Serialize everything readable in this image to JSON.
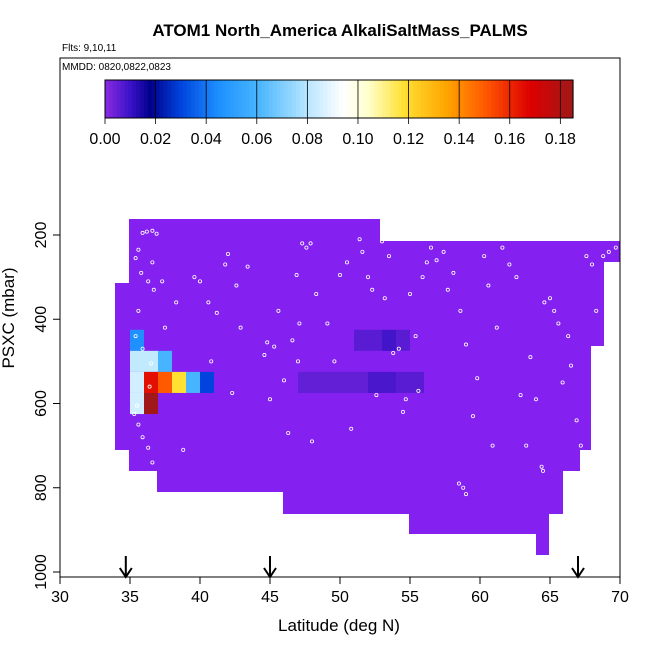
{
  "chart_data": {
    "type": "heatmap",
    "title": "ATOM1 North_America AlkaliSaltMass_PALMS",
    "subtitle": "Flts: 9,10,11",
    "annotation": "MMDD: 0820,0822,0823",
    "xlabel": "Latitude (deg N)",
    "ylabel": "PSXC (mbar)",
    "xlim": [
      30,
      70
    ],
    "ylim": [
      1000,
      0
    ],
    "y_reversed": true,
    "x_ticks": [
      "30",
      "35",
      "40",
      "45",
      "50",
      "55",
      "60",
      "65",
      "70"
    ],
    "y_ticks": [
      "200",
      "400",
      "600",
      "800",
      "1000"
    ],
    "colorbar": {
      "range": [
        0.0,
        0.185
      ],
      "ticks": [
        "0.00",
        "0.02",
        "0.04",
        "0.06",
        "0.08",
        "0.10",
        "0.12",
        "0.14",
        "0.16",
        "0.18"
      ],
      "stops": [
        {
          "v": 0.0,
          "c": "#8a2be2"
        },
        {
          "v": 0.01,
          "c": "#3a12c8"
        },
        {
          "v": 0.018,
          "c": "#00008b"
        },
        {
          "v": 0.03,
          "c": "#0044dd"
        },
        {
          "v": 0.045,
          "c": "#1e90ff"
        },
        {
          "v": 0.06,
          "c": "#46b4ff"
        },
        {
          "v": 0.08,
          "c": "#b8e6ff"
        },
        {
          "v": 0.094,
          "c": "#ffffff"
        },
        {
          "v": 0.104,
          "c": "#ffffcc"
        },
        {
          "v": 0.118,
          "c": "#ffe033"
        },
        {
          "v": 0.135,
          "c": "#ffa500"
        },
        {
          "v": 0.15,
          "c": "#ff5a00"
        },
        {
          "v": 0.168,
          "c": "#dd0000"
        },
        {
          "v": 0.185,
          "c": "#a01818"
        }
      ]
    },
    "background_color": "#8420f0",
    "cells": [
      {
        "lat": [
          35,
          36
        ],
        "p": [
          425,
          475
        ],
        "v": 0.045
      },
      {
        "lat": [
          35,
          37
        ],
        "p": [
          475,
          525
        ],
        "v": 0.082
      },
      {
        "lat": [
          37,
          38
        ],
        "p": [
          475,
          525
        ],
        "v": 0.06
      },
      {
        "lat": [
          35,
          36
        ],
        "p": [
          525,
          575
        ],
        "v": 0.085
      },
      {
        "lat": [
          36,
          37
        ],
        "p": [
          525,
          575
        ],
        "v": 0.165
      },
      {
        "lat": [
          37,
          38
        ],
        "p": [
          525,
          575
        ],
        "v": 0.15
      },
      {
        "lat": [
          38,
          39
        ],
        "p": [
          525,
          575
        ],
        "v": 0.118
      },
      {
        "lat": [
          39,
          40
        ],
        "p": [
          525,
          575
        ],
        "v": 0.06
      },
      {
        "lat": [
          40,
          41
        ],
        "p": [
          525,
          575
        ],
        "v": 0.03
      },
      {
        "lat": [
          35,
          36
        ],
        "p": [
          575,
          625
        ],
        "v": 0.085
      },
      {
        "lat": [
          36,
          37
        ],
        "p": [
          575,
          625
        ],
        "v": 0.185
      },
      {
        "lat": [
          51,
          53
        ],
        "p": [
          425,
          475
        ],
        "v": 0.006
      },
      {
        "lat": [
          53,
          54
        ],
        "p": [
          425,
          475
        ],
        "v": 0.009
      },
      {
        "lat": [
          54,
          55
        ],
        "p": [
          425,
          475
        ],
        "v": 0.006
      },
      {
        "lat": [
          47,
          52
        ],
        "p": [
          525,
          575
        ],
        "v": 0.005
      },
      {
        "lat": [
          52,
          54
        ],
        "p": [
          525,
          575
        ],
        "v": 0.008
      },
      {
        "lat": [
          54,
          56
        ],
        "p": [
          525,
          575
        ],
        "v": 0.006
      }
    ],
    "flight_markers_lat": [
      34.7,
      45.0,
      67.0
    ],
    "aircraft_points": [
      [
        35.4,
        255
      ],
      [
        35.9,
        195
      ],
      [
        36.2,
        192
      ],
      [
        36.6,
        190
      ],
      [
        36.9,
        197
      ],
      [
        35.6,
        235
      ],
      [
        35.8,
        290
      ],
      [
        36.3,
        310
      ],
      [
        36.6,
        265
      ],
      [
        36.7,
        330
      ],
      [
        35.6,
        380
      ],
      [
        35.4,
        440
      ],
      [
        35.9,
        470
      ],
      [
        36.5,
        505
      ],
      [
        36.4,
        560
      ],
      [
        35.5,
        605
      ],
      [
        35.3,
        625
      ],
      [
        35.6,
        650
      ],
      [
        35.9,
        680
      ],
      [
        36.3,
        705
      ],
      [
        36.6,
        740
      ],
      [
        37.3,
        310
      ],
      [
        37.5,
        420
      ],
      [
        38.3,
        360
      ],
      [
        38.8,
        710
      ],
      [
        39.6,
        300
      ],
      [
        40.0,
        310
      ],
      [
        40.6,
        360
      ],
      [
        40.8,
        500
      ],
      [
        41.2,
        385
      ],
      [
        41.8,
        270
      ],
      [
        42.0,
        245
      ],
      [
        42.6,
        320
      ],
      [
        42.9,
        420
      ],
      [
        43.4,
        275
      ],
      [
        44.6,
        485
      ],
      [
        44.8,
        455
      ],
      [
        45.3,
        465
      ],
      [
        45.0,
        590
      ],
      [
        45.6,
        380
      ],
      [
        46.0,
        545
      ],
      [
        46.3,
        670
      ],
      [
        46.6,
        450
      ],
      [
        46.9,
        295
      ],
      [
        47.1,
        410
      ],
      [
        47.3,
        220
      ],
      [
        47.6,
        230
      ],
      [
        47.9,
        220
      ],
      [
        48.3,
        340
      ],
      [
        49.1,
        410
      ],
      [
        49.6,
        500
      ],
      [
        50.0,
        295
      ],
      [
        50.5,
        265
      ],
      [
        50.8,
        660
      ],
      [
        51.4,
        210
      ],
      [
        51.6,
        240
      ],
      [
        52.0,
        300
      ],
      [
        52.3,
        330
      ],
      [
        52.6,
        580
      ],
      [
        53.0,
        215
      ],
      [
        53.2,
        350
      ],
      [
        53.5,
        250
      ],
      [
        53.8,
        480
      ],
      [
        54.2,
        470
      ],
      [
        54.5,
        620
      ],
      [
        54.7,
        590
      ],
      [
        55.0,
        340
      ],
      [
        55.4,
        440
      ],
      [
        55.6,
        570
      ],
      [
        55.9,
        300
      ],
      [
        56.2,
        265
      ],
      [
        56.5,
        230
      ],
      [
        56.9,
        260
      ],
      [
        57.4,
        240
      ],
      [
        57.7,
        330
      ],
      [
        58.1,
        290
      ],
      [
        58.6,
        380
      ],
      [
        59.0,
        460
      ],
      [
        59.5,
        630
      ],
      [
        59.8,
        540
      ],
      [
        60.3,
        250
      ],
      [
        60.6,
        320
      ],
      [
        60.9,
        700
      ],
      [
        61.2,
        420
      ],
      [
        61.6,
        230
      ],
      [
        62.1,
        270
      ],
      [
        62.6,
        300
      ],
      [
        62.9,
        580
      ],
      [
        63.3,
        700
      ],
      [
        63.6,
        490
      ],
      [
        64.0,
        590
      ],
      [
        64.6,
        360
      ],
      [
        65.0,
        350
      ],
      [
        65.3,
        380
      ],
      [
        65.6,
        410
      ],
      [
        65.9,
        550
      ],
      [
        66.3,
        440
      ],
      [
        66.5,
        510
      ],
      [
        66.9,
        640
      ],
      [
        67.2,
        700
      ],
      [
        67.6,
        250
      ],
      [
        68.0,
        270
      ],
      [
        68.3,
        380
      ],
      [
        68.8,
        250
      ],
      [
        69.2,
        240
      ],
      [
        69.7,
        230
      ],
      [
        64.4,
        750
      ],
      [
        64.5,
        760
      ],
      [
        58.5,
        790
      ],
      [
        58.8,
        800
      ],
      [
        59.0,
        815
      ],
      [
        48.0,
        690
      ],
      [
        42.3,
        575
      ],
      [
        47.0,
        500
      ]
    ]
  }
}
